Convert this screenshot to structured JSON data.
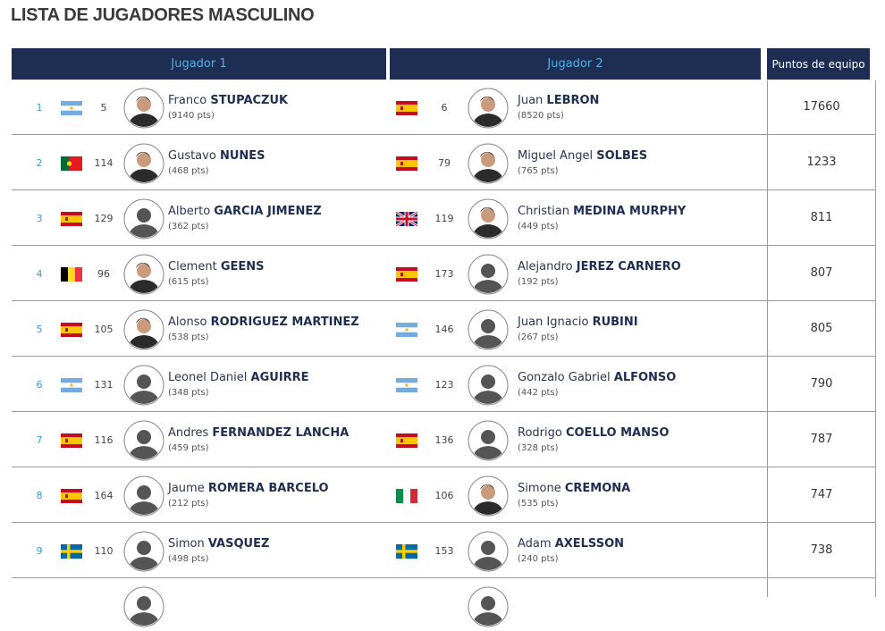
{
  "title": "LISTA DE JUGADORES MASCULINO",
  "table": {
    "headers": [
      "Jugador 1",
      "Jugador 2",
      "Puntos de equipo"
    ],
    "rows": [
      {
        "position": 1,
        "player1": {
          "rank": 5,
          "first": "Franco",
          "last": "STUPACZUK",
          "points": "(9140 pts)"
        },
        "player2": {
          "rank": 6,
          "first": "Juan",
          "last": "LEBRON",
          "points": "(8520 pts)"
        },
        "team_points": 17660
      },
      {
        "position": 2,
        "player1": {
          "rank": 114,
          "first": "Gustavo",
          "last": "NUNES",
          "points": "(468 pts)"
        },
        "player2": {
          "rank": 79,
          "first": "Miguel Angel",
          "last": "SOLBES",
          "points": "(765 pts)"
        },
        "team_points": 1233
      },
      {
        "position": 3,
        "player1": {
          "rank": 129,
          "first": "Alberto",
          "last": "GARCIA JIMENEZ",
          "points": "(362 pts)"
        },
        "player2": {
          "rank": 119,
          "first": "Christian",
          "last": "MEDINA MURPHY",
          "points": "(449 pts)"
        },
        "team_points": 811
      },
      {
        "position": 4,
        "player1": {
          "rank": 96,
          "first": "Clement",
          "last": "GEENS",
          "points": "(615 pts)"
        },
        "player2": {
          "rank": 173,
          "first": "Alejandro",
          "last": "JEREZ CARNERO",
          "points": "(192 pts)"
        },
        "team_points": 807
      },
      {
        "position": 5,
        "player1": {
          "rank": 105,
          "first": "Alonso",
          "last": "RODRIGUEZ MARTINEZ",
          "points": "(538 pts)"
        },
        "player2": {
          "rank": 146,
          "first": "Juan Ignacio",
          "last": "RUBINI",
          "points": "(267 pts)"
        },
        "team_points": 805
      },
      {
        "position": 6,
        "player1": {
          "rank": 131,
          "first": "Leonel Daniel",
          "last": "AGUIRRE",
          "points": "(348 pts)"
        },
        "player2": {
          "rank": 123,
          "first": "Gonzalo Gabriel",
          "last": "ALFONSO",
          "points": "(442 pts)"
        },
        "team_points": 790
      },
      {
        "position": 7,
        "player1": {
          "rank": 116,
          "first": "Andres",
          "last": "FERNANDEZ LANCHA",
          "points": "(459 pts)"
        },
        "player2": {
          "rank": 136,
          "first": "Rodrigo",
          "last": "COELLO MANSO",
          "points": "(328 pts)"
        },
        "team_points": 787
      },
      {
        "position": 8,
        "player1": {
          "rank": 164,
          "first": "Jaume",
          "last": "ROMERA BARCELO",
          "points": "(212 pts)"
        },
        "player2": {
          "rank": 106,
          "first": "Simone",
          "last": "CREMONA",
          "points": "(535 pts)"
        },
        "team_points": 747
      },
      {
        "position": 9,
        "player1": {
          "rank": 110,
          "first": "Simon",
          "last": "VASQUEZ",
          "points": "(498 pts)"
        },
        "player2": {
          "rank": 153,
          "first": "Adam",
          "last": "AXELSSON",
          "points": "(240 pts)"
        },
        "team_points": 738
      }
    ]
  }
}
